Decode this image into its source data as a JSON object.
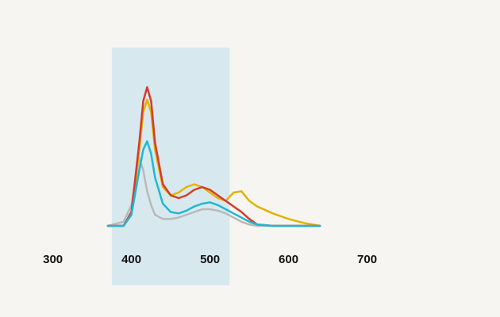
{
  "chart_data": {
    "type": "line",
    "x": [
      370,
      390,
      400,
      410,
      415,
      420,
      425,
      430,
      440,
      450,
      460,
      470,
      480,
      490,
      500,
      510,
      520,
      530,
      540,
      550,
      560,
      580,
      600,
      620,
      640
    ],
    "series": [
      {
        "color": "#b9b9b9",
        "values": [
          0,
          3,
          15,
          49,
          40,
          25,
          15,
          8,
          5,
          5,
          6,
          8,
          10,
          12,
          12,
          11,
          9,
          6,
          3,
          1,
          0,
          0,
          0,
          0,
          0
        ]
      },
      {
        "color": "#e2b300",
        "values": [
          0,
          0,
          8,
          55,
          82,
          91,
          82,
          55,
          28,
          22,
          24,
          28,
          30,
          28,
          24,
          20,
          18,
          24,
          25,
          18,
          14,
          9,
          5,
          2,
          0
        ]
      },
      {
        "color": "#d8392b",
        "values": [
          0,
          0,
          10,
          60,
          90,
          100,
          90,
          60,
          30,
          22,
          20,
          22,
          26,
          28,
          26,
          22,
          18,
          14,
          10,
          5,
          1,
          0,
          0,
          0,
          0
        ]
      },
      {
        "color": "#1fb8d3",
        "values": [
          0,
          0,
          8,
          40,
          55,
          61,
          52,
          35,
          16,
          10,
          9,
          11,
          14,
          16,
          17,
          15,
          12,
          9,
          6,
          3,
          1,
          0,
          0,
          0,
          0
        ]
      }
    ],
    "xlim": [
      265,
      850
    ],
    "xticks": [
      300,
      400,
      500,
      600,
      700
    ],
    "ylim": [
      0,
      100
    ],
    "highlight": [
      375,
      525
    ],
    "grid": false
  }
}
